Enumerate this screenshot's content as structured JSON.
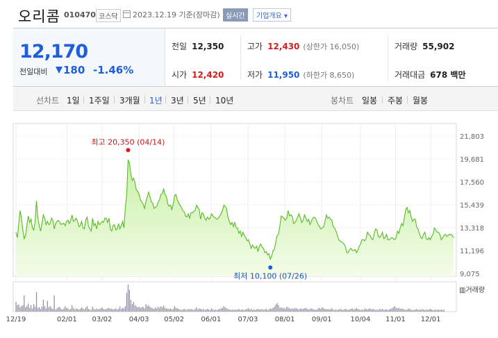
{
  "header": {
    "name": "오리콤",
    "code": "010470",
    "market": "코스닥",
    "date": "2023.12.19 기준(장마감)",
    "realtime": "실시간",
    "company_info": "기업개요 ▾"
  },
  "quote": {
    "price": "12,170",
    "prev_label": "전일대비",
    "change": "180",
    "change_pct": "-1.46%",
    "prev_close_label": "전일",
    "prev_close": "12,350",
    "open_label": "시가",
    "open": "12,420",
    "high_label": "고가",
    "high": "12,430",
    "upper_limit": "(상한가 16,050)",
    "low_label": "저가",
    "low": "11,950",
    "lower_limit": "(하한가 8,650)",
    "volume_label": "거래량",
    "volume": "55,902",
    "amount_label": "거래대금",
    "amount": "678 백만"
  },
  "tabs": {
    "line_label": "선차트",
    "line": [
      "1일",
      "1주일",
      "3개월",
      "1년",
      "3년",
      "5년",
      "10년"
    ],
    "active": "1년",
    "candle_label": "봉차트",
    "candle": [
      "일봉",
      "주봉",
      "월봉"
    ]
  },
  "colors": {
    "up": "#d81a1a",
    "down": "#1e5fd9",
    "line": "#55bb22",
    "fill_top": "#c9f0a6",
    "fill_bottom": "#f3fce9",
    "volume": "#8a8a9a"
  },
  "chart_data": {
    "type": "area",
    "y_ticks": [
      "21,803",
      "19,681",
      "17,560",
      "15,439",
      "13,318",
      "11,196",
      "9,075"
    ],
    "y_tick_values": [
      21803,
      19681,
      17560,
      15439,
      13318,
      11196,
      9075
    ],
    "ylim": [
      9075,
      21803
    ],
    "x_ticks": [
      "12/19",
      "02/01",
      "03/02",
      "04/03",
      "05/02",
      "06/01",
      "07/03",
      "08/01",
      "09/01",
      "10/04",
      "11/01",
      "12/01"
    ],
    "high_label": "최고 20,350 (04/14)",
    "low_label": "최저 10,100 (07/26)",
    "volume_label": "거래량",
    "prices": [
      12900,
      12400,
      13600,
      14900,
      14200,
      13100,
      12300,
      12600,
      13600,
      14400,
      13800,
      14100,
      13300,
      13100,
      13900,
      15800,
      14200,
      13500,
      13000,
      13700,
      14500,
      14200,
      13600,
      13900,
      13600,
      13700,
      14200,
      14000,
      13200,
      13700,
      13900,
      14000,
      13800,
      13600,
      13700,
      13700,
      13500,
      13900,
      14000,
      13700,
      14000,
      14500,
      13900,
      14000,
      14200,
      13900,
      13400,
      13500,
      13900,
      13300,
      13200,
      14000,
      14300,
      13500,
      13200,
      13000,
      14200,
      13500,
      13700,
      13200,
      13900,
      13600,
      13700,
      13900,
      13800,
      14200,
      14200,
      13800,
      14200,
      13200,
      13000,
      13500,
      13600,
      13100,
      13200,
      13700,
      13200,
      13500,
      13900,
      13300,
      15200,
      16400,
      19600,
      19300,
      18300,
      17700,
      17900,
      17500,
      16800,
      16700,
      16400,
      15900,
      15700,
      15500,
      15100,
      15700,
      16200,
      16600,
      16200,
      15700,
      15600,
      15100,
      15200,
      15300,
      15700,
      15900,
      16400,
      16500,
      16900,
      16400,
      16200,
      15500,
      15300,
      15400,
      15000,
      15500,
      16300,
      16400,
      15900,
      15600,
      15400,
      15200,
      14900,
      14800,
      14400,
      14300,
      14600,
      14200,
      14700,
      14700,
      14800,
      14900,
      15400,
      15200,
      15000,
      14100,
      14700,
      14600,
      14200,
      14000,
      14300,
      14100,
      14200,
      14600,
      14400,
      14300,
      14200,
      14100,
      14200,
      14400,
      14600,
      14900,
      15400,
      15300,
      15100,
      14300,
      13900,
      13600,
      13800,
      13400,
      13800,
      13300,
      13300,
      12800,
      13000,
      12500,
      12900,
      12600,
      12400,
      12100,
      12200,
      11800,
      11400,
      11700,
      11500,
      11400,
      11600,
      11100,
      11600,
      11800,
      11500,
      11400,
      11000,
      11100,
      10800,
      10900,
      10400,
      10700,
      11200,
      11300,
      12000,
      12600,
      12700,
      13500,
      14400,
      14300,
      14200,
      14000,
      14200,
      14900,
      14400,
      14500,
      14400,
      13700,
      13800,
      14000,
      14300,
      14600,
      14200,
      13800,
      14000,
      14500,
      14200,
      13900,
      14100,
      13600,
      13900,
      14200,
      14300,
      14200,
      13900,
      13600,
      13400,
      13200,
      13300,
      13400,
      13900,
      14500,
      14200,
      14300,
      14100,
      14000,
      13400,
      13300,
      13000,
      12600,
      12200,
      12100,
      12000,
      11900,
      11800,
      11500,
      11000,
      11000,
      11300,
      11400,
      11200,
      11200,
      11300,
      11000,
      11200,
      11600,
      11800,
      12200,
      12200,
      12100,
      12300,
      12900,
      12700,
      12600,
      12300,
      12200,
      12800,
      13200,
      13100,
      12500,
      12400,
      12600,
      12900,
      12300,
      12400,
      12700,
      12200,
      12200,
      12300,
      12400,
      12300,
      12200,
      12400,
      13000,
      12800,
      13300,
      13700,
      13500,
      14200,
      15000,
      15200,
      14700,
      14900,
      14300,
      13900,
      14100,
      14100,
      13400,
      13200,
      12800,
      12400,
      12300,
      12700,
      12900,
      12300,
      12200,
      12400,
      12200,
      12500,
      12700,
      13300,
      13100,
      12900,
      12900,
      12700,
      12200,
      12400,
      12600,
      12700,
      12500,
      12600,
      12700,
      12700,
      12600,
      12400
    ],
    "volumes": [
      18,
      12,
      13,
      8,
      10,
      12,
      30,
      8,
      10,
      15,
      7,
      12,
      6,
      14,
      9,
      36,
      7,
      8,
      5,
      9,
      22,
      10,
      6,
      20,
      8,
      10,
      7,
      5,
      30,
      4,
      6,
      8,
      9,
      5,
      4,
      6,
      10,
      7,
      6,
      4,
      5,
      12,
      7,
      4,
      6,
      5,
      4,
      5,
      8,
      6,
      4,
      7,
      10,
      5,
      4,
      3,
      9,
      5,
      4,
      6,
      4,
      5,
      6,
      8,
      5,
      4,
      5,
      6,
      7,
      5,
      6,
      4,
      5,
      6,
      4,
      5,
      9,
      5,
      7,
      6,
      10,
      35,
      50,
      40,
      22,
      14,
      18,
      12,
      10,
      8,
      9,
      7,
      8,
      9,
      6,
      14,
      10,
      12,
      9,
      7,
      6,
      5,
      8,
      6,
      9,
      7,
      10,
      8,
      11,
      7,
      6,
      5,
      5,
      6,
      4,
      5,
      10,
      7,
      6,
      5,
      4,
      3,
      4,
      5,
      4,
      3,
      5,
      4,
      5,
      4,
      3,
      5,
      8,
      4,
      6,
      5,
      4,
      5,
      3,
      4,
      5,
      4,
      3,
      6,
      4,
      3,
      4,
      3,
      4,
      5,
      6,
      7,
      10,
      8,
      6,
      5,
      4,
      3,
      4,
      3,
      4,
      3,
      4,
      5,
      3,
      4,
      4,
      3,
      4,
      5,
      6,
      4,
      5,
      3,
      4,
      3,
      4,
      5,
      4,
      4,
      5,
      3,
      4,
      5,
      3,
      4,
      6,
      5,
      7,
      9,
      13,
      16,
      12,
      7,
      8,
      6,
      7,
      5,
      9,
      8,
      6,
      5,
      6,
      5,
      7,
      6,
      5,
      4,
      6,
      5,
      5,
      6,
      7,
      5,
      4,
      5,
      6,
      5,
      4,
      3,
      4,
      6,
      7,
      5,
      8,
      6,
      5,
      4,
      5,
      4,
      5,
      6,
      4,
      3,
      4,
      3,
      4,
      5,
      4,
      3,
      4,
      5,
      4,
      3,
      4,
      5,
      6,
      4,
      5,
      7,
      5,
      4,
      3,
      4,
      3,
      6,
      5,
      4,
      5,
      6,
      4,
      5,
      4,
      3,
      4,
      3,
      5,
      4,
      5,
      3,
      4,
      4,
      3,
      4,
      5,
      6,
      8,
      10,
      7,
      6,
      7,
      5,
      6,
      5,
      4,
      3,
      4,
      6,
      5,
      4,
      3,
      3,
      4,
      5,
      3,
      4,
      3,
      5,
      4,
      3,
      4,
      3,
      4,
      5,
      4,
      3,
      3,
      4,
      3,
      4,
      3,
      4,
      3,
      4
    ],
    "grid": true
  }
}
